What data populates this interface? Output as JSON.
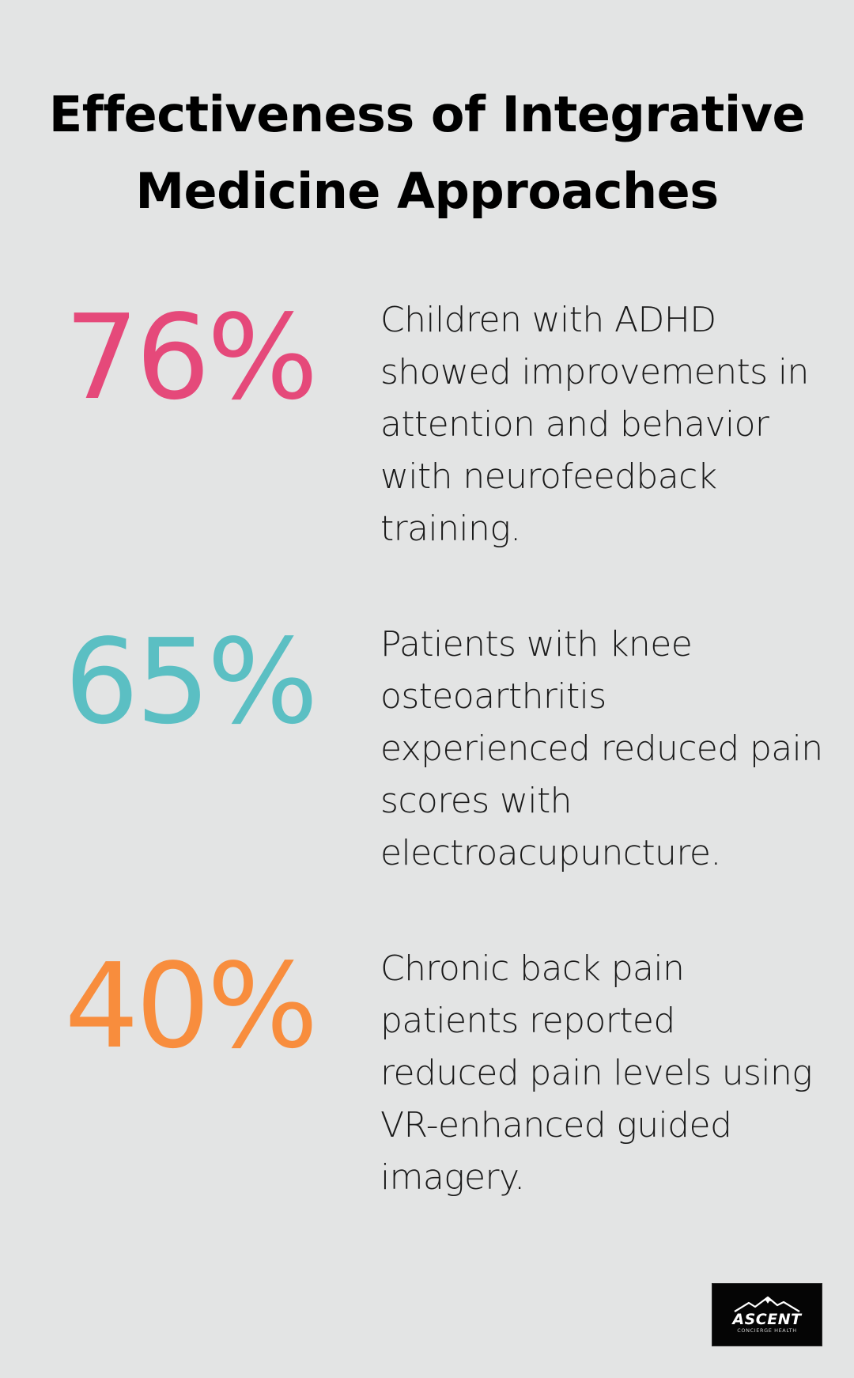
{
  "title": "Effectiveness of Integrative Medicine Approaches",
  "stats": [
    {
      "value": "76%",
      "color": "#e5497a",
      "description": "Children with ADHD showed improvements in attention and behavior with neurofeedback training."
    },
    {
      "value": "65%",
      "color": "#5bbfc3",
      "description": "Patients with knee osteoarthritis experienced reduced pain scores with electroacupuncture."
    },
    {
      "value": "40%",
      "color": "#f88d3d",
      "description": "Chronic back pain patients reported reduced pain levels using VR-enhanced guided imagery."
    }
  ],
  "logo": {
    "wordmark": "ASCENT",
    "tagline": "CONCIERGE HEALTH",
    "icon": "mountain-icon"
  }
}
